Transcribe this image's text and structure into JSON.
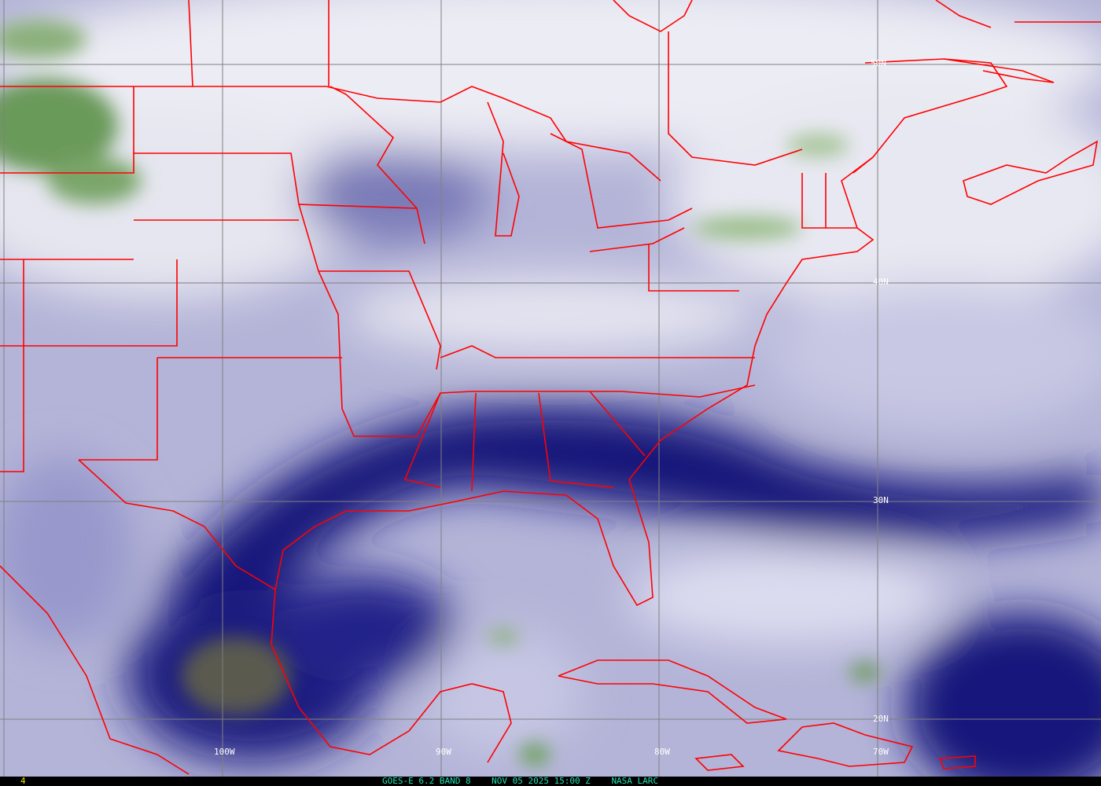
{
  "product": {
    "satellite": "GOES-E 6.2 BAND 8",
    "datetime": "NOV 05 2025 15:00 Z",
    "source": "NASA LARC",
    "frame_number": "4"
  },
  "grid": {
    "latitude_labels": [
      "50N",
      "40N",
      "30N",
      "20N"
    ],
    "longitude_labels": [
      "100W",
      "90W",
      "80W",
      "70W"
    ],
    "line_color": "#808080"
  },
  "colors": {
    "border_color": "#ff0000",
    "moist_dark": "#0a0a70",
    "dry_light": "#eeeef6",
    "cloud_green": "#5a9a4a"
  }
}
